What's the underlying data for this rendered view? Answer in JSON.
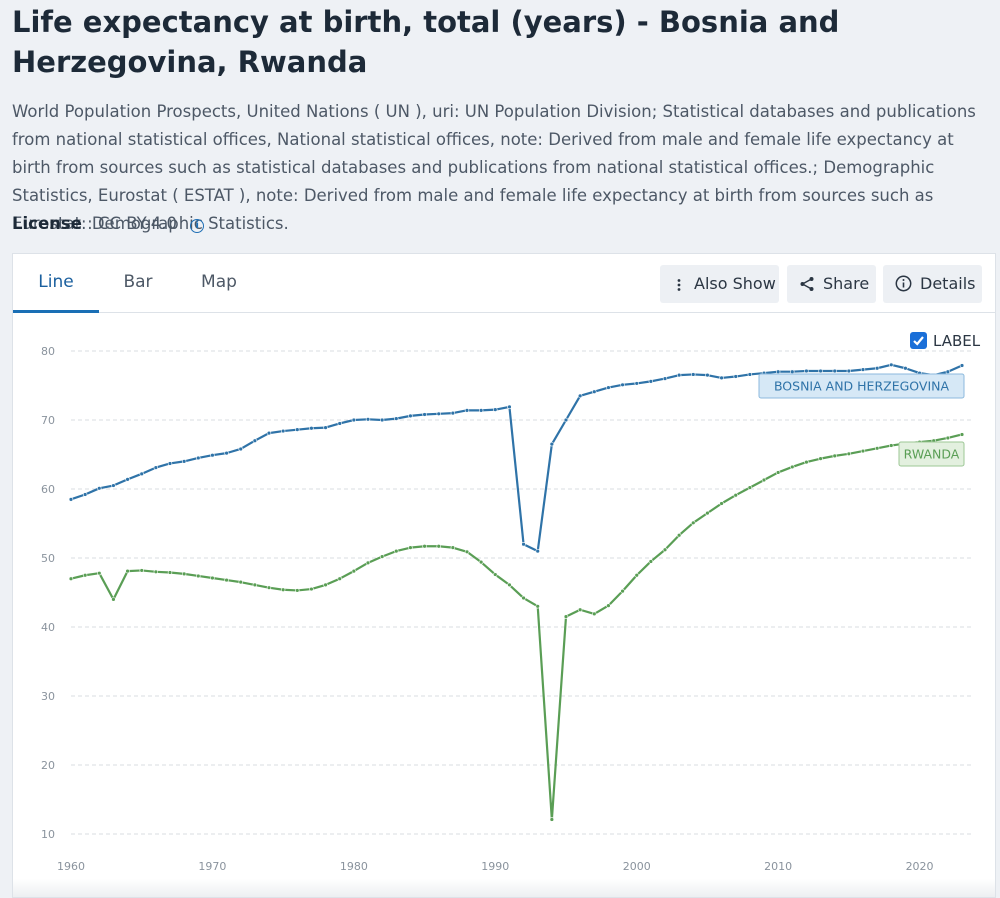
{
  "header": {
    "title": "Life expectancy at birth, total (years) - Bosnia and Herzegovina, Rwanda",
    "source": "World Population Prospects, United Nations ( UN ), uri: UN Population Division; Statistical databases and publications from national statistical offices, National statistical offices, note: Derived from male and female life expectancy at birth from sources such as statistical databases and publications from national statistical offices.; Demographic Statistics, Eurostat ( ESTAT ), note: Derived from male and female life expectancy at birth from sources such as Eurostat: Demographic Statistics.",
    "license_label": "License",
    "license_value": ": CC BY-4.0"
  },
  "tabs": [
    {
      "label": "Line",
      "active": true
    },
    {
      "label": "Bar",
      "active": false
    },
    {
      "label": "Map",
      "active": false
    }
  ],
  "toolbar": {
    "also_show": "Also Show",
    "share": "Share",
    "details": "Details"
  },
  "label_toggle": "LABEL",
  "colors": {
    "bosnia": "#2f73a8",
    "rwanda": "#5a9e55",
    "grid": "#d9dde2",
    "tick": "#8a939d"
  },
  "chart_data": {
    "type": "line",
    "title": "Life expectancy at birth, total (years)",
    "xlabel": "",
    "ylabel": "",
    "xlim": [
      1960,
      2023
    ],
    "ylim": [
      10,
      80
    ],
    "x_ticks": [
      1960,
      1970,
      1980,
      1990,
      2000,
      2010,
      2020
    ],
    "y_ticks": [
      10,
      20,
      30,
      40,
      50,
      60,
      70,
      80
    ],
    "grid": true,
    "x": [
      1960,
      1961,
      1962,
      1963,
      1964,
      1965,
      1966,
      1967,
      1968,
      1969,
      1970,
      1971,
      1972,
      1973,
      1974,
      1975,
      1976,
      1977,
      1978,
      1979,
      1980,
      1981,
      1982,
      1983,
      1984,
      1985,
      1986,
      1987,
      1988,
      1989,
      1990,
      1991,
      1992,
      1993,
      1994,
      1995,
      1996,
      1997,
      1998,
      1999,
      2000,
      2001,
      2002,
      2003,
      2004,
      2005,
      2006,
      2007,
      2008,
      2009,
      2010,
      2011,
      2012,
      2013,
      2014,
      2015,
      2016,
      2017,
      2018,
      2019,
      2020,
      2021,
      2022,
      2023
    ],
    "series": [
      {
        "name": "BOSNIA AND HERZEGOVINA",
        "values": [
          58.5,
          59.2,
          60.1,
          60.5,
          61.4,
          62.2,
          63.1,
          63.7,
          64.0,
          64.5,
          64.9,
          65.2,
          65.8,
          67.0,
          68.1,
          68.4,
          68.6,
          68.8,
          68.9,
          69.5,
          70.0,
          70.1,
          70.0,
          70.2,
          70.6,
          70.8,
          70.9,
          71.0,
          71.4,
          71.4,
          71.5,
          71.9,
          52.0,
          51.0,
          66.5,
          70.0,
          73.5,
          74.1,
          74.7,
          75.1,
          75.3,
          75.6,
          76.0,
          76.5,
          76.6,
          76.5,
          76.1,
          76.3,
          76.6,
          76.8,
          77.0,
          77.0,
          77.1,
          77.1,
          77.1,
          77.1,
          77.3,
          77.5,
          78.0,
          77.5,
          76.8,
          76.5,
          77.0,
          77.9
        ]
      },
      {
        "name": "RWANDA",
        "values": [
          47.0,
          47.5,
          47.8,
          44.0,
          48.1,
          48.2,
          48.0,
          47.9,
          47.7,
          47.4,
          47.1,
          46.8,
          46.5,
          46.1,
          45.7,
          45.4,
          45.3,
          45.5,
          46.1,
          47.0,
          48.1,
          49.3,
          50.2,
          51.0,
          51.5,
          51.7,
          51.7,
          51.5,
          50.9,
          49.4,
          47.6,
          46.1,
          44.2,
          43.0,
          12.1,
          41.5,
          42.5,
          41.9,
          43.1,
          45.2,
          47.5,
          49.5,
          51.2,
          53.3,
          55.1,
          56.5,
          57.9,
          59.1,
          60.2,
          61.3,
          62.4,
          63.2,
          63.9,
          64.4,
          64.8,
          65.1,
          65.5,
          65.9,
          66.3,
          66.6,
          66.8,
          67.0,
          67.4,
          67.9
        ]
      }
    ],
    "series_labels": [
      "BOSNIA AND HERZEGOVINA",
      "RWANDA"
    ]
  }
}
